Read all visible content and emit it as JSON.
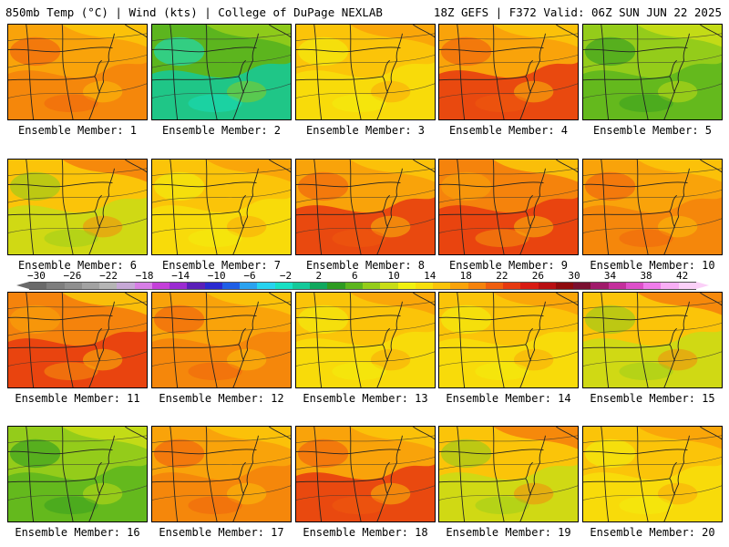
{
  "header": {
    "left": "850mb Temp (°C) | Wind (kts) | College of DuPage NEXLAB",
    "right": "18Z GEFS | F372 Valid: 06Z SUN JUN 22 2025"
  },
  "colorbar": {
    "labels": [
      "−30",
      "−26",
      "−22",
      "−18",
      "−14",
      "−10",
      "−6",
      "−2",
      "2",
      "6",
      "10",
      "14",
      "18",
      "22",
      "26",
      "30",
      "34",
      "38",
      "42"
    ],
    "colors": [
      "#6a6a6a",
      "#7e7e7e",
      "#8f8f8f",
      "#a2a2a2",
      "#b5b5b5",
      "#c6a8d6",
      "#d77ee6",
      "#c43fd9",
      "#9b2bd1",
      "#5a1fb8",
      "#2a2ad0",
      "#1f5fe6",
      "#2aa2f0",
      "#27d3ef",
      "#17e0c4",
      "#14c99a",
      "#10a85e",
      "#2e9b22",
      "#5cb51e",
      "#94cc1a",
      "#c8dd16",
      "#f1f10f",
      "#f7df0b",
      "#fbc409",
      "#f9a30a",
      "#f5830c",
      "#ef5e0e",
      "#e63a10",
      "#d81b13",
      "#b80f12",
      "#8e0a0d",
      "#7a1030",
      "#a01a6a",
      "#c42f9c",
      "#dd4fc9",
      "#ef7cea",
      "#f8aef5",
      "#fbd0f8"
    ]
  },
  "panels": [
    {
      "label": "Ensemble Member: 1",
      "scheme": "orange"
    },
    {
      "label": "Ensemble Member: 2",
      "scheme": "cool"
    },
    {
      "label": "Ensemble Member: 3",
      "scheme": "yellow"
    },
    {
      "label": "Ensemble Member: 4",
      "scheme": "warmwest"
    },
    {
      "label": "Ensemble Member: 5",
      "scheme": "green"
    },
    {
      "label": "Ensemble Member: 6",
      "scheme": "mixed"
    },
    {
      "label": "Ensemble Member: 7",
      "scheme": "yellow"
    },
    {
      "label": "Ensemble Member: 8",
      "scheme": "warmwest"
    },
    {
      "label": "Ensemble Member: 9",
      "scheme": "hotsouth"
    },
    {
      "label": "Ensemble Member: 10",
      "scheme": "orange"
    },
    {
      "label": "Ensemble Member: 11",
      "scheme": "hotsouth"
    },
    {
      "label": "Ensemble Member: 12",
      "scheme": "orange"
    },
    {
      "label": "Ensemble Member: 13",
      "scheme": "yellow"
    },
    {
      "label": "Ensemble Member: 14",
      "scheme": "yellow"
    },
    {
      "label": "Ensemble Member: 15",
      "scheme": "mixed"
    },
    {
      "label": "Ensemble Member: 16",
      "scheme": "green"
    },
    {
      "label": "Ensemble Member: 17",
      "scheme": "orange"
    },
    {
      "label": "Ensemble Member: 18",
      "scheme": "warmwest"
    },
    {
      "label": "Ensemble Member: 19",
      "scheme": "mixed"
    },
    {
      "label": "Ensemble Member: 20",
      "scheme": "yellow"
    }
  ]
}
